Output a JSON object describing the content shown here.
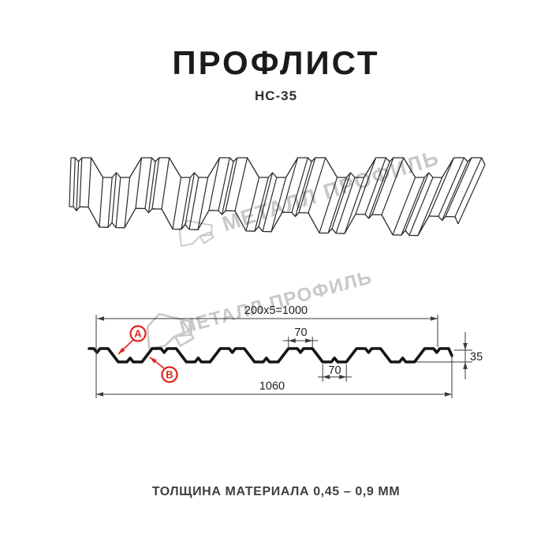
{
  "header": {
    "title": "ПРОФЛИСТ",
    "subtitle": "НС-35"
  },
  "watermark": {
    "text": "МЕТАЛЛ ПРОФИЛЬ"
  },
  "drawing": {
    "dims": {
      "pitch": "200x5=1000",
      "crest_width": "70",
      "valley_width": "70",
      "height": "35",
      "overall_width": "1060"
    },
    "labels": {
      "side_a": "A",
      "side_b": "B"
    }
  },
  "footer": {
    "note": "ТОЛЩИНА МАТЕРИАЛА 0,45 – 0,9 ММ"
  },
  "colors": {
    "ink": "#1b1b1b",
    "thin_line": "#2b2b2b",
    "profile_line": "#141414",
    "dim_line": "#3a3a3a",
    "dim_text": "#1f1f1f",
    "accent_red": "#e2231a",
    "watermark_gray": "#c8c8c8",
    "background": "#ffffff"
  }
}
